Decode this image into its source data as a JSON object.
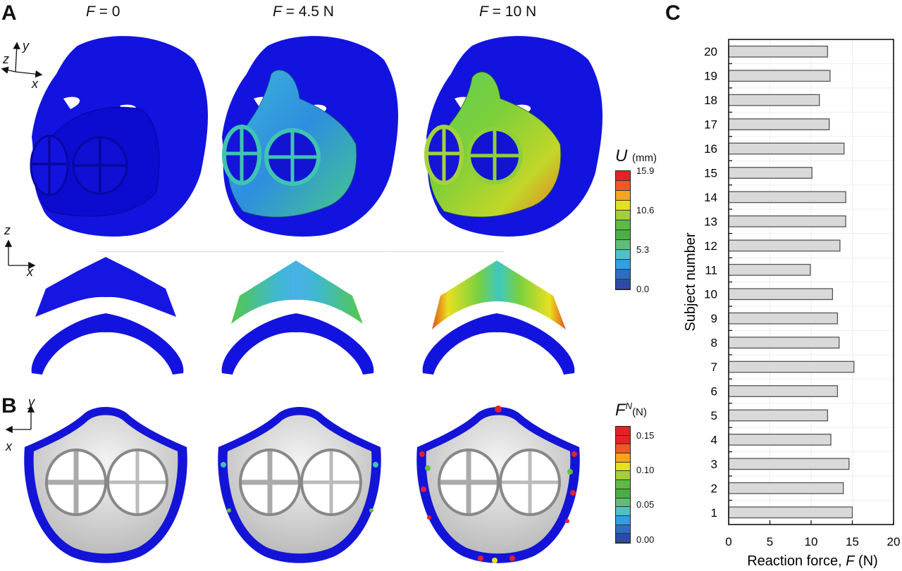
{
  "panel_a": {
    "letter": "A",
    "columns": [
      {
        "label_var": "F",
        "label_rest": " = 0"
      },
      {
        "label_var": "F",
        "label_rest": " = 4.5 N"
      },
      {
        "label_var": "F",
        "label_rest": " = 10 N"
      }
    ],
    "axes_top": {
      "x": "x",
      "y": "y",
      "z": "z"
    },
    "axes_bottom": {
      "x": "x",
      "z": "z"
    },
    "colorbar": {
      "symbol": "U",
      "unit": "(mm)",
      "ticks": [
        "15.9",
        "10.6",
        "5.3",
        "0.0"
      ],
      "colors": [
        "#e8202a",
        "#f05a22",
        "#f8a41c",
        "#e4e21e",
        "#a2cf3a",
        "#60b944",
        "#4aaf46",
        "#5fbd78",
        "#4fc1c4",
        "#2fa0e0",
        "#2f6dc0",
        "#2e4aa8"
      ]
    }
  },
  "panel_b": {
    "letter": "B",
    "axes": {
      "x": "x",
      "y": "y"
    },
    "colorbar": {
      "symbol": "F",
      "superscript": "N",
      "unit": "(N)",
      "ticks": [
        "0.15",
        "0.10",
        "0.05",
        "0.00"
      ],
      "colors": [
        "#e8202a",
        "#e8202a",
        "#f05a22",
        "#f8a41c",
        "#e4e21e",
        "#a2cf3a",
        "#60b944",
        "#4aaf46",
        "#5fbd78",
        "#4fc1c4",
        "#2fa0e0",
        "#2f6dc0",
        "#2e4aa8"
      ]
    }
  },
  "panel_c": {
    "letter": "C"
  },
  "colors": {
    "mesh_blue": "#1010e0",
    "bar_fill": "#d9d9d9",
    "bar_stroke": "#555555",
    "grid": "#eeeeee"
  },
  "chart_data": {
    "type": "bar",
    "orientation": "horizontal",
    "title": "",
    "xlabel": "Reaction force, F (N)",
    "ylabel": "Subject number",
    "xlim": [
      0,
      20
    ],
    "xticks": [
      0,
      5,
      10,
      15,
      20
    ],
    "categories": [
      "1",
      "2",
      "3",
      "4",
      "5",
      "6",
      "7",
      "8",
      "9",
      "10",
      "11",
      "12",
      "13",
      "14",
      "15",
      "16",
      "17",
      "18",
      "19",
      "20"
    ],
    "values": [
      15.0,
      13.9,
      14.6,
      12.4,
      12.0,
      13.2,
      15.2,
      13.4,
      13.2,
      12.6,
      9.9,
      13.5,
      14.2,
      14.2,
      10.1,
      14.0,
      12.2,
      11.0,
      12.3,
      12.0
    ],
    "grid": true,
    "legend": null
  }
}
